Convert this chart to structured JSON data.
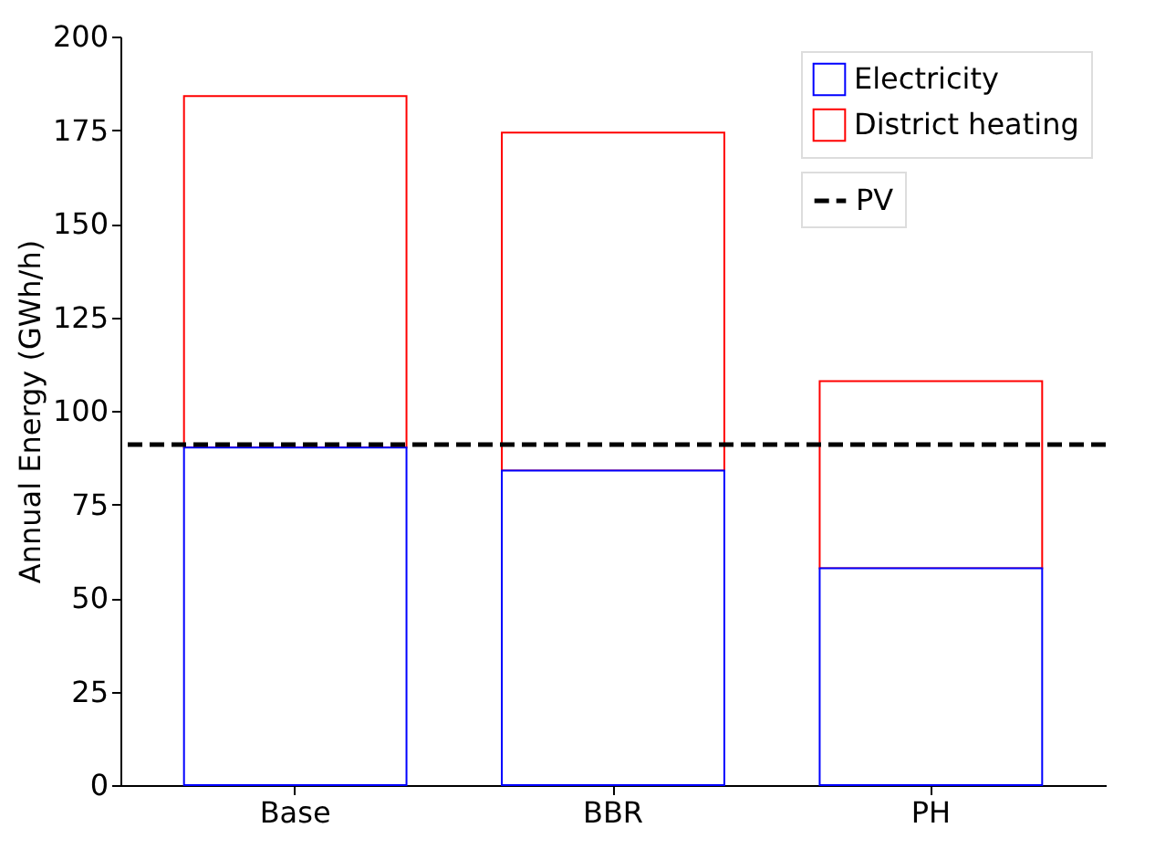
{
  "chart_data": {
    "type": "bar",
    "stacked": true,
    "ylabel": "Annual Energy (GWh/h)",
    "categories": [
      "Base",
      "BBR",
      "PH"
    ],
    "series": [
      {
        "name": "Electricity",
        "color": "#0000ff",
        "values": [
          90.2,
          84.0,
          57.9
        ]
      },
      {
        "name": "District heating",
        "color": "#ff0000",
        "values": [
          93.9,
          90.3,
          50.0
        ]
      }
    ],
    "ylim": [
      0,
      200
    ],
    "yticks": [
      0,
      25,
      50,
      75,
      100,
      125,
      150,
      175,
      200
    ],
    "grid": false,
    "legend": "top right",
    "ref_lines": [
      {
        "axis": "y",
        "value": 91.0,
        "label": "PV",
        "color": "#000000",
        "line_style": "dashed"
      }
    ]
  }
}
